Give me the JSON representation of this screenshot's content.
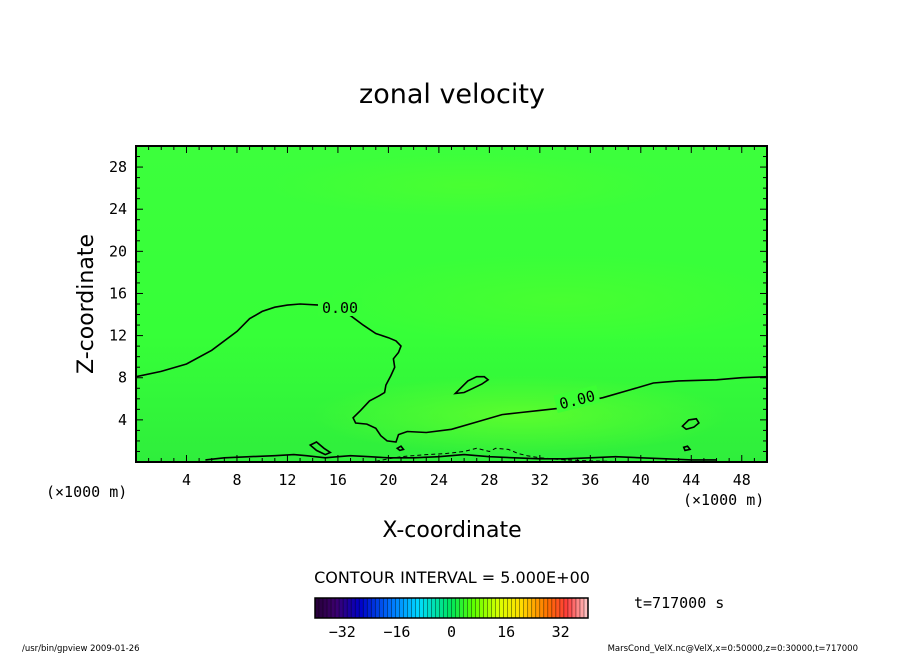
{
  "chart_data": {
    "type": "contour",
    "title": "zonal velocity",
    "xlabel": "X-coordinate",
    "ylabel": "Z-coordinate",
    "x_unit_left": "(×1000 m)",
    "x_unit_right": "(×1000 m)",
    "xlim": [
      0,
      50
    ],
    "ylim": [
      0,
      30
    ],
    "xticks": [
      4,
      8,
      12,
      16,
      20,
      24,
      28,
      32,
      36,
      40,
      44,
      48
    ],
    "yticks": [
      4,
      8,
      12,
      16,
      20,
      24,
      28
    ],
    "background_color": "#33ff33",
    "contour_level_labels": [
      "0.00",
      "0.00"
    ],
    "zero_contour_main": [
      [
        0,
        8.1
      ],
      [
        2,
        8.6
      ],
      [
        4,
        9.3
      ],
      [
        6,
        10.6
      ],
      [
        8,
        12.4
      ],
      [
        9,
        13.6
      ],
      [
        10,
        14.3
      ],
      [
        11,
        14.7
      ],
      [
        12,
        14.9
      ],
      [
        13,
        15.0
      ],
      [
        14.5,
        14.9
      ],
      [
        15.5,
        14.7
      ],
      [
        16,
        14.5
      ],
      [
        17,
        13.9
      ],
      [
        18,
        13.0
      ],
      [
        19,
        12.2
      ],
      [
        20,
        11.8
      ],
      [
        20.6,
        11.5
      ],
      [
        21,
        11.0
      ],
      [
        20.8,
        10.4
      ],
      [
        20.4,
        9.8
      ],
      [
        20.5,
        9.0
      ],
      [
        20.2,
        8.2
      ],
      [
        19.8,
        7.3
      ],
      [
        19.7,
        6.6
      ],
      [
        19.3,
        6.3
      ],
      [
        18.5,
        5.8
      ],
      [
        17.8,
        4.9
      ],
      [
        17.2,
        4.2
      ],
      [
        17.4,
        3.7
      ],
      [
        18.3,
        3.6
      ],
      [
        19,
        3.2
      ],
      [
        19.4,
        2.5
      ],
      [
        19.9,
        2.0
      ],
      [
        20.6,
        1.9
      ],
      [
        20.8,
        2.6
      ],
      [
        21.5,
        2.9
      ],
      [
        23,
        2.8
      ],
      [
        25,
        3.1
      ],
      [
        27,
        3.8
      ],
      [
        29,
        4.5
      ],
      [
        30.5,
        4.7
      ],
      [
        32,
        4.9
      ],
      [
        33.5,
        5.1
      ],
      [
        35,
        5.6
      ],
      [
        37,
        6.1
      ],
      [
        39,
        6.8
      ],
      [
        41,
        7.5
      ],
      [
        43,
        7.7
      ],
      [
        46,
        7.8
      ],
      [
        48,
        8.0
      ],
      [
        50,
        8.1
      ]
    ],
    "closed_contours": [
      [
        [
          25.3,
          6.5
        ],
        [
          25.8,
          7.1
        ],
        [
          26.3,
          7.7
        ],
        [
          27,
          8.1
        ],
        [
          27.6,
          8.1
        ],
        [
          27.9,
          7.8
        ],
        [
          27.4,
          7.4
        ],
        [
          26.7,
          7.0
        ],
        [
          26,
          6.6
        ],
        [
          25.3,
          6.5
        ]
      ],
      [
        [
          43.3,
          3.4
        ],
        [
          43.8,
          4.0
        ],
        [
          44.4,
          4.1
        ],
        [
          44.6,
          3.7
        ],
        [
          44.2,
          3.3
        ],
        [
          43.6,
          3.1
        ],
        [
          43.3,
          3.4
        ]
      ],
      [
        [
          13.8,
          1.6
        ],
        [
          14.3,
          1.9
        ],
        [
          14.9,
          1.3
        ],
        [
          15.4,
          0.9
        ],
        [
          15.0,
          0.7
        ],
        [
          14.3,
          1.1
        ],
        [
          13.8,
          1.6
        ]
      ],
      [
        [
          20.7,
          1.3
        ],
        [
          21.0,
          1.5
        ],
        [
          21.2,
          1.2
        ],
        [
          20.9,
          1.1
        ],
        [
          20.7,
          1.3
        ]
      ],
      [
        [
          43.4,
          1.4
        ],
        [
          43.7,
          1.5
        ],
        [
          43.9,
          1.2
        ],
        [
          43.5,
          1.1
        ],
        [
          43.4,
          1.4
        ]
      ]
    ],
    "zero_contour_bottom": [
      [
        5.5,
        0.2
      ],
      [
        7,
        0.4
      ],
      [
        9,
        0.5
      ],
      [
        11,
        0.6
      ],
      [
        12.5,
        0.7
      ],
      [
        13.5,
        0.6
      ],
      [
        15,
        0.4
      ],
      [
        16,
        0.5
      ],
      [
        17,
        0.6
      ],
      [
        18.5,
        0.5
      ],
      [
        20,
        0.4
      ],
      [
        22,
        0.4
      ],
      [
        24,
        0.5
      ],
      [
        26,
        0.7
      ],
      [
        28,
        0.5
      ],
      [
        30,
        0.4
      ],
      [
        32,
        0.3
      ],
      [
        34,
        0.3
      ],
      [
        36,
        0.4
      ],
      [
        38,
        0.5
      ],
      [
        40,
        0.4
      ],
      [
        42,
        0.3
      ],
      [
        44,
        0.2
      ],
      [
        46,
        0.2
      ]
    ],
    "dashed_contour_bottom": [
      [
        19,
        0.05
      ],
      [
        20,
        0.3
      ],
      [
        21,
        0.5
      ],
      [
        23,
        0.7
      ],
      [
        24.5,
        0.8
      ],
      [
        26,
        1.0
      ],
      [
        27,
        1.3
      ],
      [
        28,
        1.0
      ],
      [
        28.5,
        1.3
      ],
      [
        29.5,
        1.2
      ],
      [
        30.3,
        0.8
      ],
      [
        31,
        0.6
      ],
      [
        32,
        0.4
      ],
      [
        34,
        0.2
      ],
      [
        36,
        0.1
      ],
      [
        38,
        0.05
      ]
    ],
    "colorbar": {
      "label": "CONTOUR INTERVAL = 5.000E+00",
      "ticks": [
        "-32",
        "-16",
        "0",
        "16",
        "32"
      ],
      "range": [
        -40,
        40
      ]
    },
    "time_label": "t=717000 s"
  },
  "footer": {
    "left": "/usr/bin/gpview   2009-01-26",
    "right": "MarsCond_VelX.nc@VelX,x=0:50000,z=0:30000,t=717000"
  }
}
